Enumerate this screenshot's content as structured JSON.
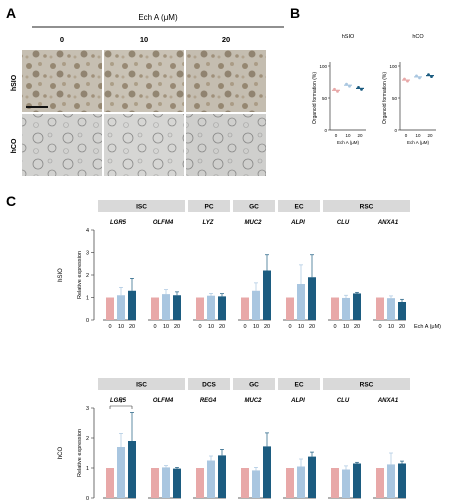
{
  "panel_a": {
    "letter": "A",
    "treatment": "Ech A (μM)",
    "concentrations": [
      "0",
      "10",
      "20"
    ],
    "row_labels": [
      "hSIO",
      "hCO"
    ]
  },
  "panel_b": {
    "letter": "B",
    "plots": [
      {
        "title": "hSIO",
        "ylabel": "Organoid formation (%)",
        "xlabel": "Ech A (μM)",
        "ticks": [
          "0",
          "10",
          "20"
        ],
        "yticks": [
          "0",
          "50",
          "100"
        ],
        "points": [
          {
            "dose": "0",
            "value": 62
          },
          {
            "dose": "10",
            "value": 70
          },
          {
            "dose": "20",
            "value": 65
          }
        ]
      },
      {
        "title": "hCO",
        "ylabel": "Organoid formation (%)",
        "xlabel": "Ech A (μM)",
        "ticks": [
          "0",
          "10",
          "20"
        ],
        "yticks": [
          "0",
          "50",
          "100"
        ],
        "points": [
          {
            "dose": "0",
            "value": 78
          },
          {
            "dose": "10",
            "value": 83
          },
          {
            "dose": "20",
            "value": 85
          }
        ]
      }
    ]
  },
  "panel_c": {
    "letter": "C",
    "colors": {
      "0": "#e8a8a8",
      "10": "#a9c6e0",
      "20": "#1c5c80"
    },
    "x_ticks": [
      "0",
      "10",
      "20"
    ],
    "x_unit": "Ech A (μM)",
    "ylabel": "Relative expression"
  },
  "chart_data": [
    {
      "type": "bar",
      "title": "hSIO",
      "ylabel": "Relative expression",
      "xlabel": "Ech A (μM)",
      "ylim": [
        0,
        4
      ],
      "yticks": [
        "0",
        "1",
        "2",
        "3",
        "4"
      ],
      "cell_types": [
        {
          "name": "ISC",
          "span": 2
        },
        {
          "name": "PC",
          "span": 1
        },
        {
          "name": "GC",
          "span": 1
        },
        {
          "name": "EC",
          "span": 1
        },
        {
          "name": "RSC",
          "span": 2
        }
      ],
      "genes": [
        "LGR5",
        "OLFM4",
        "LYZ",
        "MUC2",
        "ALPI",
        "CLU",
        "ANXA1"
      ],
      "doses": [
        "0",
        "10",
        "20"
      ],
      "values": [
        [
          1.0,
          1.1,
          1.3
        ],
        [
          1.0,
          1.15,
          1.1
        ],
        [
          1.0,
          1.08,
          1.05
        ],
        [
          1.0,
          1.3,
          2.2
        ],
        [
          1.0,
          1.6,
          1.9
        ],
        [
          1.0,
          0.98,
          1.18
        ],
        [
          1.0,
          0.97,
          0.8
        ]
      ],
      "errors": [
        [
          0.0,
          0.35,
          0.55
        ],
        [
          0.0,
          0.2,
          0.15
        ],
        [
          0.0,
          0.1,
          0.12
        ],
        [
          0.0,
          0.35,
          0.7
        ],
        [
          0.0,
          0.85,
          1.0
        ],
        [
          0.0,
          0.12,
          0.05
        ],
        [
          0.0,
          0.1,
          0.12
        ]
      ],
      "annotations": []
    },
    {
      "type": "bar",
      "title": "hCO",
      "ylabel": "Relative expression",
      "xlabel": "Ech A (μM)",
      "ylim": [
        0,
        3
      ],
      "yticks": [
        "0",
        "1",
        "2",
        "3"
      ],
      "cell_types": [
        {
          "name": "ISC",
          "span": 2
        },
        {
          "name": "DCS",
          "span": 1
        },
        {
          "name": "GC",
          "span": 1
        },
        {
          "name": "EC",
          "span": 1
        },
        {
          "name": "RSC",
          "span": 2
        }
      ],
      "genes": [
        "LGR5",
        "OLFM4",
        "REG4",
        "MUC2",
        "ALPI",
        "CLU",
        "ANXA1"
      ],
      "doses": [
        "0",
        "10",
        "20"
      ],
      "values": [
        [
          1.0,
          1.7,
          1.9
        ],
        [
          1.0,
          1.02,
          0.98
        ],
        [
          1.0,
          1.25,
          1.42
        ],
        [
          1.0,
          0.92,
          1.72
        ],
        [
          1.0,
          1.05,
          1.38
        ],
        [
          1.0,
          0.95,
          1.15
        ],
        [
          1.0,
          1.12,
          1.15
        ]
      ],
      "errors": [
        [
          0.0,
          0.45,
          0.95
        ],
        [
          0.0,
          0.06,
          0.04
        ],
        [
          0.0,
          0.15,
          0.2
        ],
        [
          0.0,
          0.1,
          0.45
        ],
        [
          0.0,
          0.25,
          0.15
        ],
        [
          0.0,
          0.12,
          0.04
        ],
        [
          0.0,
          0.38,
          0.08
        ]
      ],
      "annotations": [
        "*"
      ]
    }
  ]
}
